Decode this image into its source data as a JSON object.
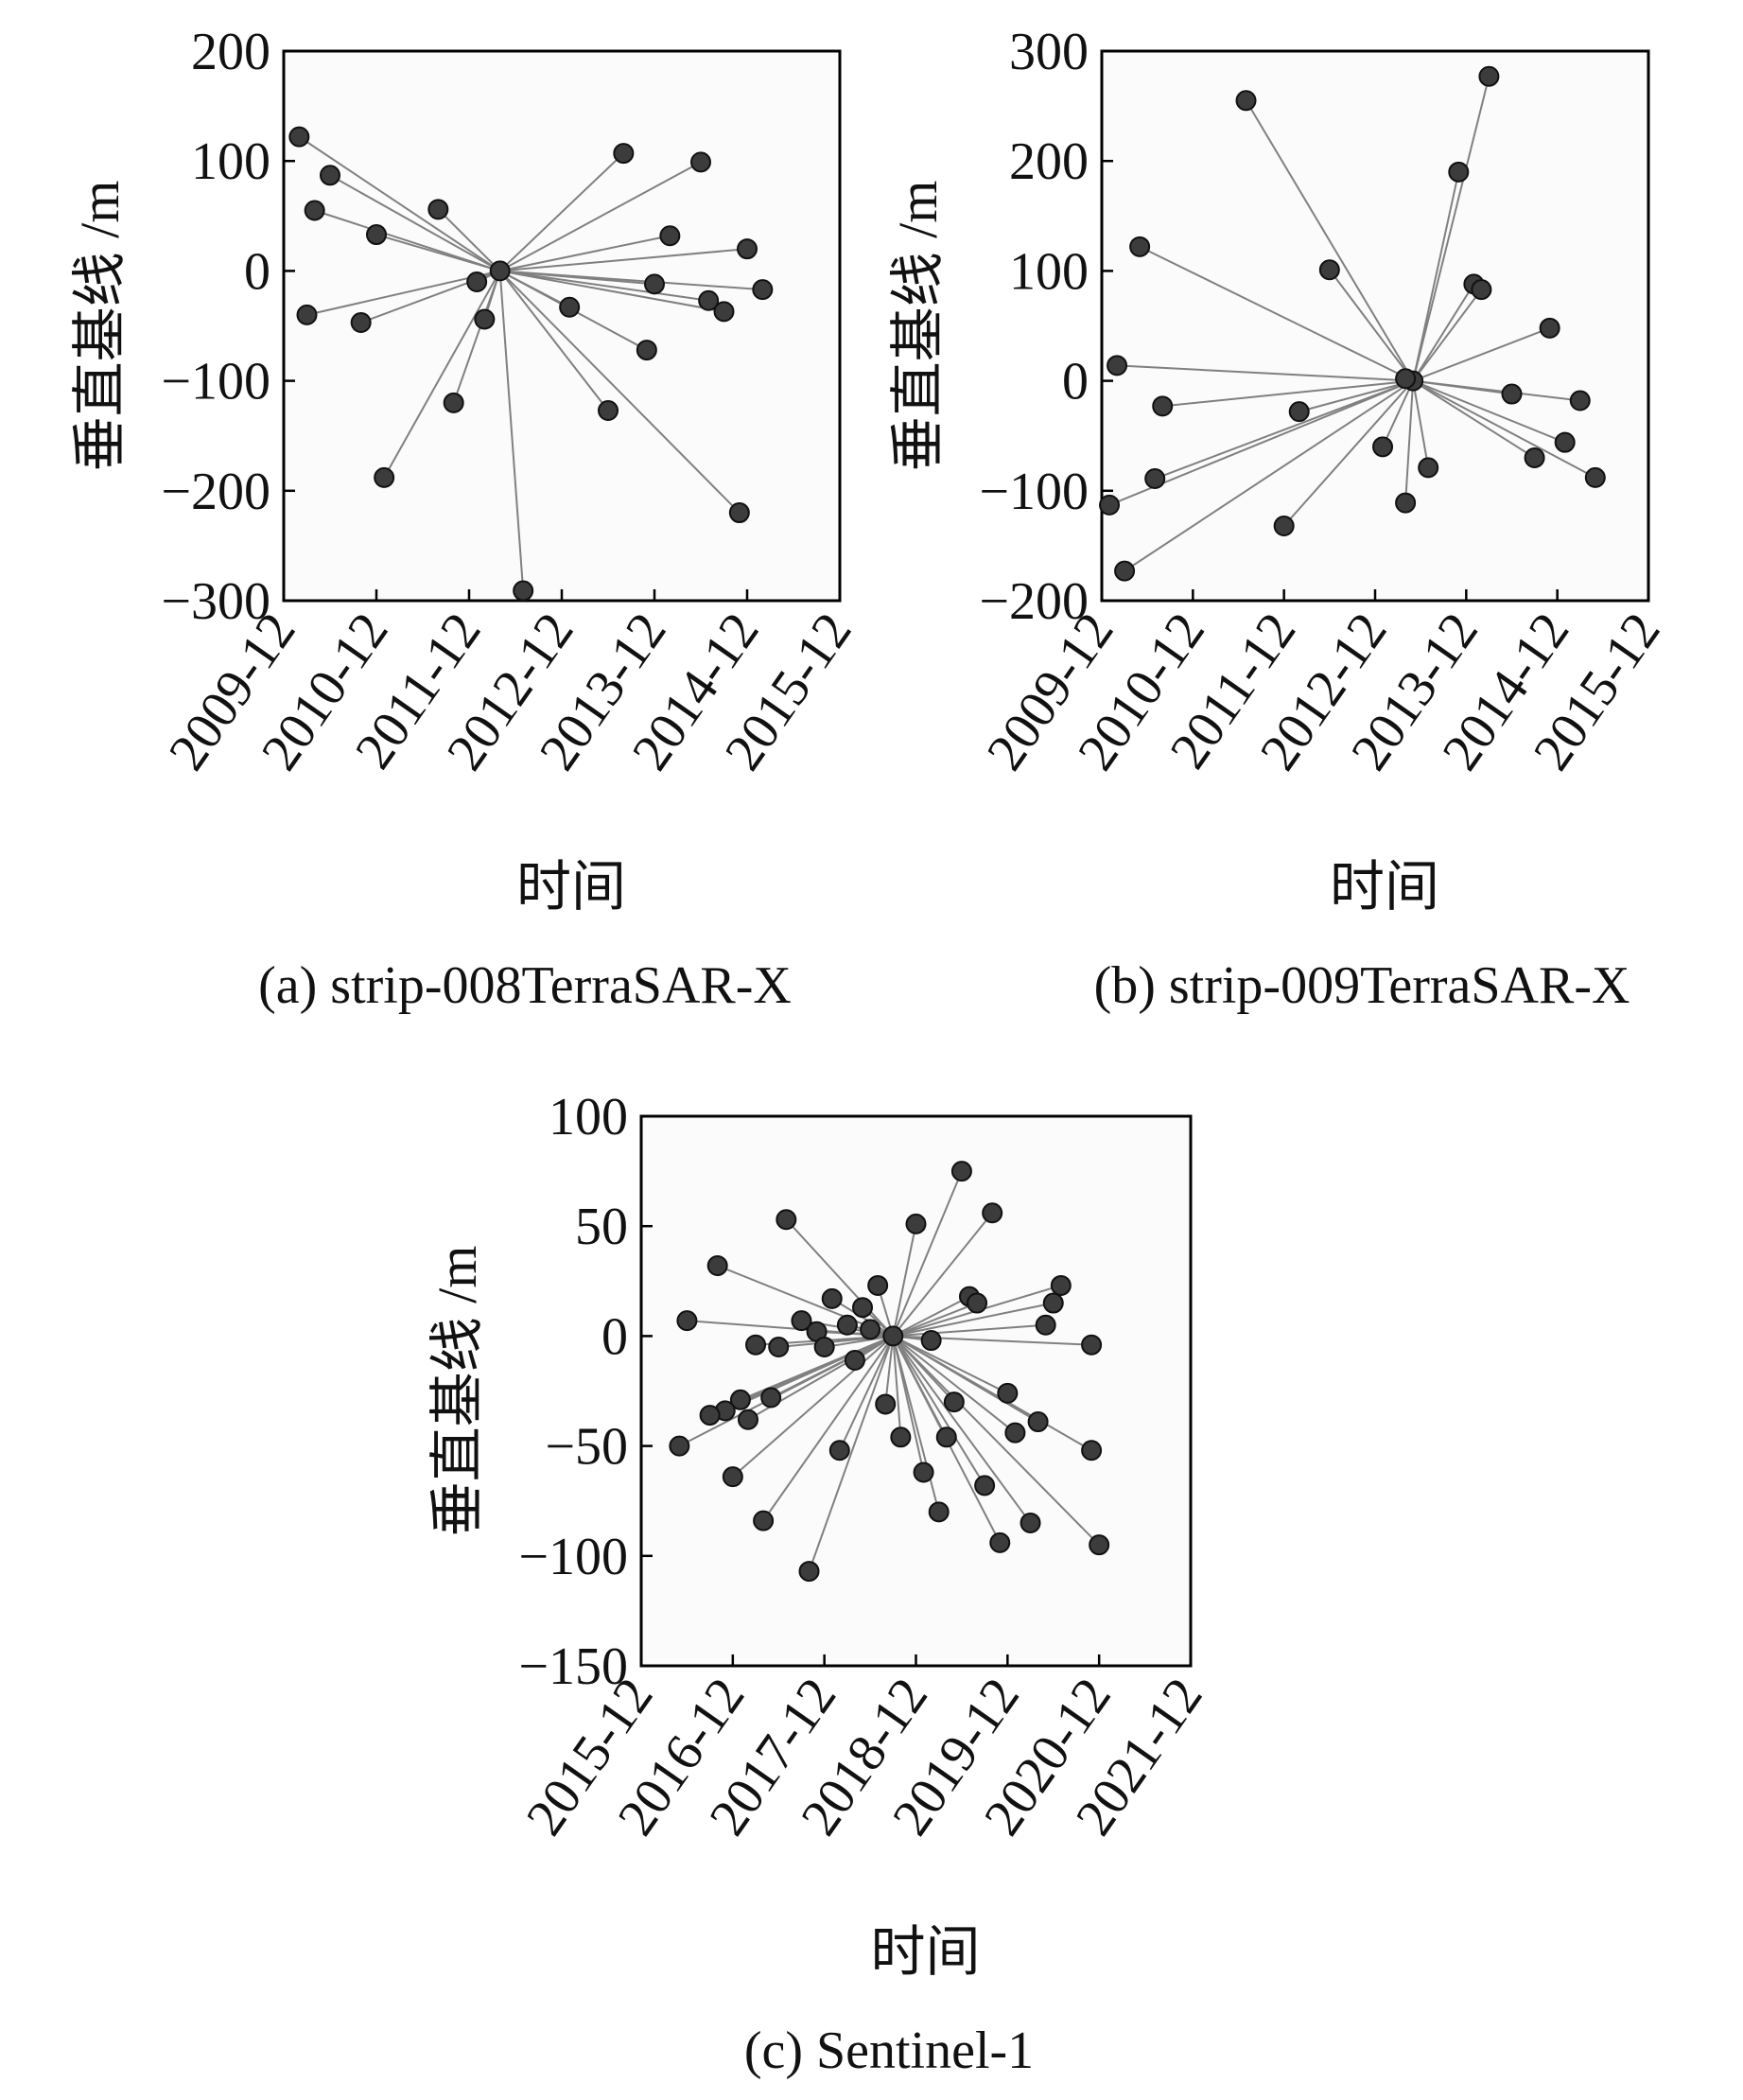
{
  "chart_data": [
    {
      "type": "scatter",
      "x_label": "时间",
      "y_label": "垂直基线 /m",
      "caption": "(a) strip-008TerraSAR-X",
      "marker_color": "#3c3c3c",
      "line_color": "#808080",
      "x": [
        "2010-02",
        "2010-06",
        "2010-04",
        "2010-12",
        "2010-03",
        "2010-10",
        "2011-08",
        "2012-04",
        "2012-01",
        "2012-02",
        "2011-10",
        "2011-01",
        "2012-07",
        "2013-08",
        "2014-06",
        "2014-02",
        "2014-12",
        "2013-12",
        "2015-02",
        "2014-07",
        "2014-09",
        "2013-01",
        "2013-11",
        "2013-06",
        "2014-11"
      ],
      "values": [
        122,
        87,
        55,
        33,
        -40,
        -47,
        56,
        0,
        -10,
        -44,
        -120,
        -188,
        -291,
        107,
        99,
        32,
        20,
        -12,
        -17,
        -27,
        -37,
        -33,
        -72,
        -127,
        -220
      ],
      "xlim": [
        "2009-12",
        "2015-12"
      ],
      "xticks": [
        "2009-12",
        "2010-12",
        "2011-12",
        "2012-12",
        "2013-12",
        "2014-12",
        "2015-12"
      ],
      "ylim": [
        -300,
        200
      ],
      "yticks": [
        {
          "value": -300,
          "label": "−300"
        },
        {
          "value": -200,
          "label": "−200"
        },
        {
          "value": -100,
          "label": "−100"
        },
        0,
        100,
        200
      ]
    },
    {
      "type": "scatter",
      "x_label": "时间",
      "y_label": "垂直基线 /m",
      "caption": "(b) strip-009TerraSAR-X",
      "marker_color": "#3c3c3c",
      "line_color": "#808080",
      "x": [
        "2011-07",
        "2014-03",
        "2013-11",
        "2010-05",
        "2012-06",
        "2014-01",
        "2014-02",
        "2014-11",
        "2010-02",
        "2013-05",
        "2013-04",
        "2014-06",
        "2015-03",
        "2010-08",
        "2012-02",
        "2015-01",
        "2013-01",
        "2014-09",
        "2013-07",
        "2015-05",
        "2010-07",
        "2013-04",
        "2010-01",
        "2011-12",
        "2010-03"
      ],
      "values": [
        255,
        277,
        190,
        122,
        101,
        88,
        83,
        48,
        14,
        0,
        2,
        -12,
        -18,
        -23,
        -28,
        -56,
        -60,
        -70,
        -79,
        -88,
        -89,
        -111,
        -113,
        -132,
        -173
      ],
      "xlim": [
        "2009-12",
        "2015-12"
      ],
      "xticks": [
        "2009-12",
        "2010-12",
        "2011-12",
        "2012-12",
        "2013-12",
        "2014-12",
        "2015-12"
      ],
      "ylim": [
        -200,
        300
      ],
      "yticks": [
        {
          "value": -200,
          "label": "−200"
        },
        {
          "value": -100,
          "label": "−100"
        },
        0,
        100,
        200,
        300
      ]
    },
    {
      "type": "scatter",
      "x_label": "时间",
      "y_label": "垂直基线 /m",
      "caption": "(c) Sentinel-1",
      "marker_color": "#3c3c3c",
      "line_color": "#808080",
      "x": [
        "2018-09",
        "2019-06",
        "2017-07",
        "2018-12",
        "2019-10",
        "2016-10",
        "2018-07",
        "2020-07",
        "2018-01",
        "2019-07",
        "2019-08",
        "2020-06",
        "2018-05",
        "2016-06",
        "2017-09",
        "2018-03",
        "2017-11",
        "2018-06",
        "2020-05",
        "2017-03",
        "2017-06",
        "2017-12",
        "2019-02",
        "2020-11",
        "2018-04",
        "2017-01",
        "2019-12",
        "2018-08",
        "2019-05",
        "2017-05",
        "2016-11",
        "2016-09",
        "2017-02",
        "2020-04",
        "2020-01",
        "2018-10",
        "2019-04",
        "2016-05",
        "2020-11",
        "2018-02",
        "2016-12",
        "2019-01",
        "2019-09",
        "2019-03",
        "2017-04",
        "2020-03",
        "2019-11",
        "2020-12",
        "2017-10"
      ],
      "values": [
        0,
        75,
        53,
        51,
        56,
        32,
        23,
        23,
        17,
        18,
        15,
        15,
        13,
        7,
        7,
        5,
        2,
        3,
        5,
        -4,
        -5,
        -5,
        -2,
        -4,
        -11,
        -29,
        -26,
        -31,
        -30,
        -28,
        -34,
        -36,
        -38,
        -39,
        -44,
        -46,
        -46,
        -50,
        -52,
        -52,
        -64,
        -62,
        -68,
        -80,
        -84,
        -85,
        -94,
        -95,
        -107
      ],
      "xlim": [
        "2015-12",
        "2021-12"
      ],
      "xticks": [
        "2015-12",
        "2016-12",
        "2017-12",
        "2018-12",
        "2019-12",
        "2020-12",
        "2021-12"
      ],
      "ylim": [
        -150,
        100
      ],
      "yticks": [
        {
          "value": -150,
          "label": "−150"
        },
        {
          "value": -100,
          "label": "−100"
        },
        {
          "value": -50,
          "label": "−50"
        },
        0,
        50,
        100
      ]
    }
  ]
}
